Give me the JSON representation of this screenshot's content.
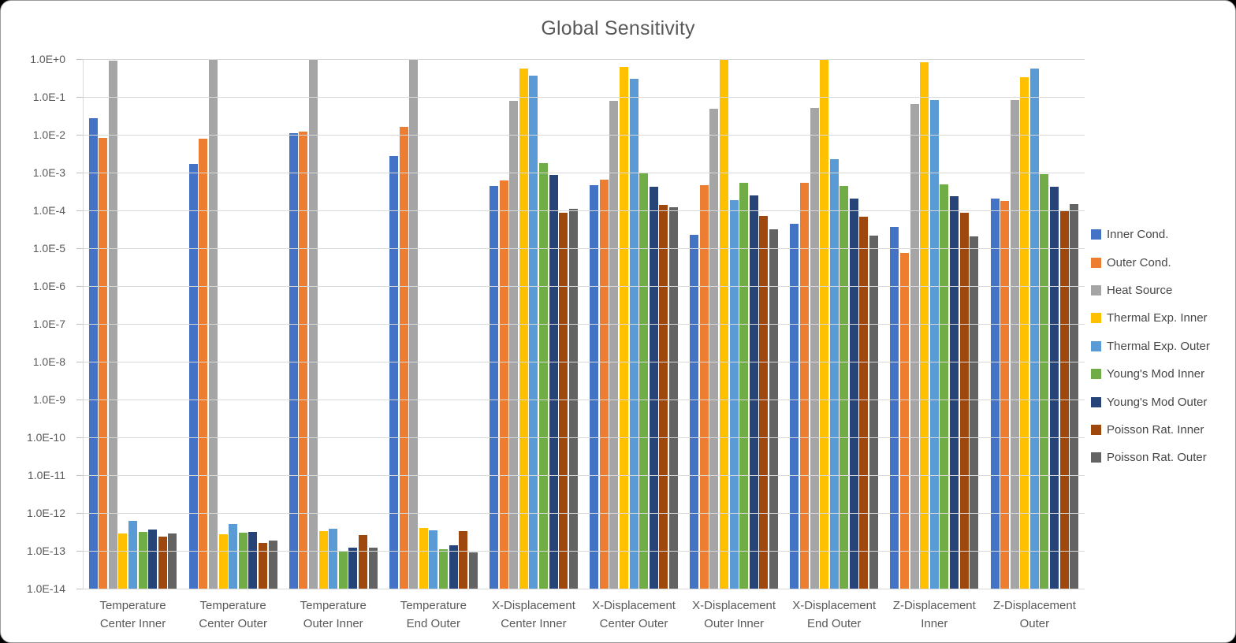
{
  "chart_data": {
    "type": "bar",
    "title": "Global Sensitivity",
    "y_axis": {
      "scale": "log10",
      "min": 1e-14,
      "max": 1.0,
      "ticks": [
        "1.0E+0",
        "1.0E-1",
        "1.0E-2",
        "1.0E-3",
        "1.0E-4",
        "1.0E-5",
        "1.0E-6",
        "1.0E-7",
        "1.0E-8",
        "1.0E-9",
        "1.0E-10",
        "1.0E-11",
        "1.0E-12",
        "1.0E-13",
        "1.0E-14"
      ]
    },
    "grid": "horizontal-only",
    "legend_position": "right",
    "categories": [
      [
        "Temperature",
        "Center Inner"
      ],
      [
        "Temperature",
        "Center Outer"
      ],
      [
        "Temperature",
        "Outer Inner"
      ],
      [
        "Temperature",
        "End Outer"
      ],
      [
        "X-Displacement",
        "Center Inner"
      ],
      [
        "X-Displacement",
        "Center Outer"
      ],
      [
        "X-Displacement",
        "Outer Inner"
      ],
      [
        "X-Displacement",
        "End Outer"
      ],
      [
        "Z-Displacement",
        "Inner"
      ],
      [
        "Z-Displacement",
        "Outer"
      ]
    ],
    "series": [
      {
        "name": "Inner Cond.",
        "color": "#4472C4",
        "values": [
          0.028,
          0.0017,
          0.011,
          0.0028,
          0.00045,
          0.00047,
          2.3e-05,
          4.4e-05,
          3.6e-05,
          0.00021
        ]
      },
      {
        "name": "Outer Cond.",
        "color": "#ED7D31",
        "values": [
          0.0084,
          0.0079,
          0.012,
          0.016,
          0.00062,
          0.00065,
          0.00047,
          0.00054,
          7.6e-06,
          0.00018
        ]
      },
      {
        "name": "Heat Source",
        "color": "#A5A5A5",
        "values": [
          0.93,
          0.94,
          0.96,
          0.96,
          0.08,
          0.08,
          0.048,
          0.052,
          0.066,
          0.081
        ]
      },
      {
        "name": "Thermal Exp. Inner",
        "color": "#FFC000",
        "values": [
          2.9e-13,
          2.8e-13,
          3.4e-13,
          4.1e-13,
          0.56,
          0.63,
          0.97,
          0.96,
          0.83,
          0.34
        ]
      },
      {
        "name": "Thermal Exp. Outer",
        "color": "#5B9BD5",
        "values": [
          6.3e-13,
          5.1e-13,
          3.9e-13,
          3.5e-13,
          0.36,
          0.3,
          0.00019,
          0.0023,
          0.081,
          0.57
        ]
      },
      {
        "name": "Young's Mod Inner",
        "color": "#70AD47",
        "values": [
          3.2e-13,
          3e-13,
          9.8e-14,
          1.1e-13,
          0.0018,
          0.00094,
          0.00054,
          0.00044,
          0.00048,
          0.00092
        ]
      },
      {
        "name": "Young's Mod Outer",
        "color": "#264478",
        "values": [
          3.6e-13,
          3.1e-13,
          1.2e-13,
          1.4e-13,
          0.00087,
          0.00043,
          0.00025,
          0.00021,
          0.00024,
          0.00043
        ]
      },
      {
        "name": "Poisson Rat. Inner",
        "color": "#9E480E",
        "values": [
          2.4e-13,
          1.6e-13,
          2.6e-13,
          3.4e-13,
          8.6e-05,
          0.00014,
          7e-05,
          6.7e-05,
          8.6e-05,
          9.6e-05
        ]
      },
      {
        "name": "Poisson Rat. Outer",
        "color": "#636363",
        "values": [
          2.9e-13,
          1.9e-13,
          1.2e-13,
          9e-14,
          0.00011,
          0.00012,
          3.1e-05,
          2.2e-05,
          2.1e-05,
          0.00015
        ]
      }
    ]
  },
  "colors": {
    "background": "#FFFFFF",
    "gridline": "#D9D9D9",
    "axis_text": "#595959",
    "title_text": "#595959",
    "legend_text": "#474747"
  }
}
